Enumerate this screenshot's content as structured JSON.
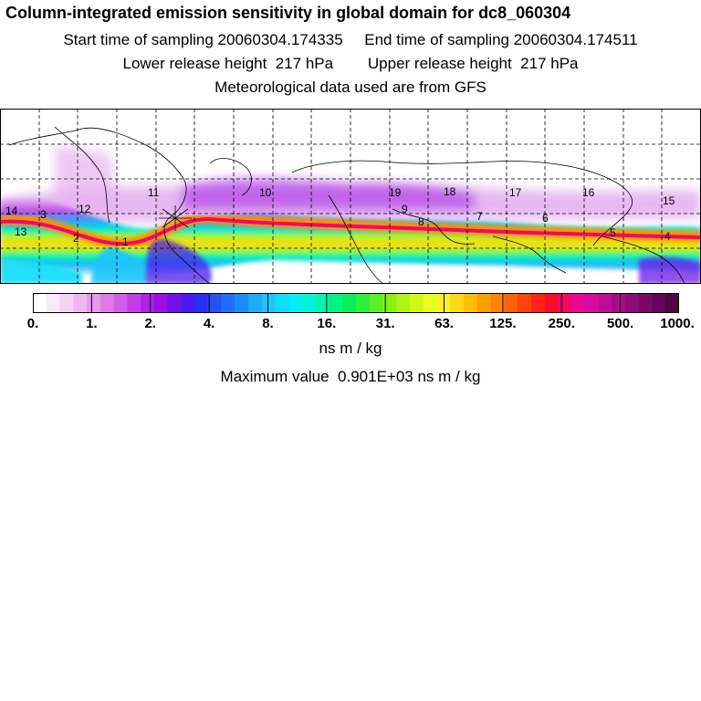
{
  "header": {
    "title": "Column-integrated emission sensitivity in global domain for dc8_060304",
    "sampling_line": "Start time of sampling 20060304.174335     End time of sampling 20060304.174511",
    "release_line": "Lower release height  217 hPa        Upper release height  217 hPa",
    "met_line": "Meteorological data used are from GFS"
  },
  "map": {
    "trajectory_labels": [
      "14",
      "3",
      "13",
      "12",
      "2",
      "11",
      "1",
      "10",
      "9",
      "8",
      "7",
      "6",
      "5",
      "4",
      "19",
      "18",
      "17",
      "16",
      "15"
    ]
  },
  "colorbar": {
    "tick_labels": [
      "0.",
      "1.",
      "2.",
      "4.",
      "8.",
      "16.",
      "31.",
      "63.",
      "125.",
      "250.",
      "500.",
      "1000."
    ],
    "colors": [
      "#ffffff",
      "#fbe8fb",
      "#f6d2f6",
      "#f0b8f0",
      "#e79ae9",
      "#de7ce5",
      "#d25ee5",
      "#c23ee6",
      "#ae22e6",
      "#9b0ee6",
      "#6e12e6",
      "#4a1aee",
      "#2a2ef2",
      "#2452f2",
      "#1d70f4",
      "#1a8cf6",
      "#20aafa",
      "#1cc6fc",
      "#10dcfa",
      "#00f0f4",
      "#00f4d6",
      "#00f4b0",
      "#00f484",
      "#08f058",
      "#2cf03a",
      "#5cf024",
      "#88f018",
      "#b0f414",
      "#d2f818",
      "#ecfc20",
      "#fff020",
      "#ffd814",
      "#ffbe08",
      "#ffa000",
      "#ff8400",
      "#ff6404",
      "#ff440c",
      "#ff2414",
      "#f80c28",
      "#f0086a",
      "#e80894",
      "#d60c9c",
      "#c00c94",
      "#a80c88",
      "#900a7a",
      "#780868",
      "#640558",
      "#500442"
    ],
    "units": "ns m / kg",
    "max_label": "Maximum value  0.901E+03 ns m / kg"
  }
}
